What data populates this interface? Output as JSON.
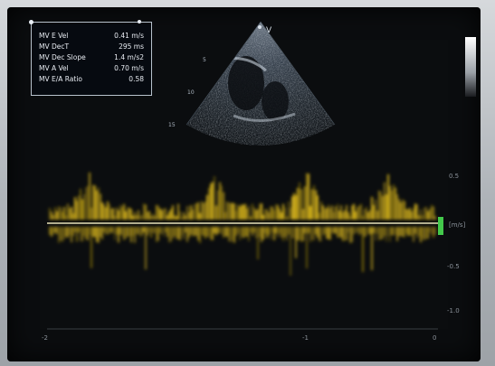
{
  "measurements": [
    {
      "label": "MV E Vel",
      "value": "0.41 m/s"
    },
    {
      "label": "MV DecT",
      "value": "295 ms"
    },
    {
      "label": "MV Dec Slope",
      "value": "1.4 m/s2"
    },
    {
      "label": "MV A Vel",
      "value": "0.70 m/s"
    },
    {
      "label": "MV E/A Ratio",
      "value": "0.58"
    }
  ],
  "probe_marker": "V",
  "depth_labels": [
    "5",
    "10",
    "15"
  ],
  "velocity_scale": {
    "unit": "[m/s]",
    "ticks": [
      "0.5",
      "-0.5",
      "-1.0"
    ]
  },
  "time_axis": {
    "ticks": [
      "-2",
      "-1",
      "0"
    ]
  },
  "colors": {
    "doppler_spectrum": "#e8c21c",
    "baseline": "#e9e4b8",
    "indicator": "#43c94b"
  }
}
